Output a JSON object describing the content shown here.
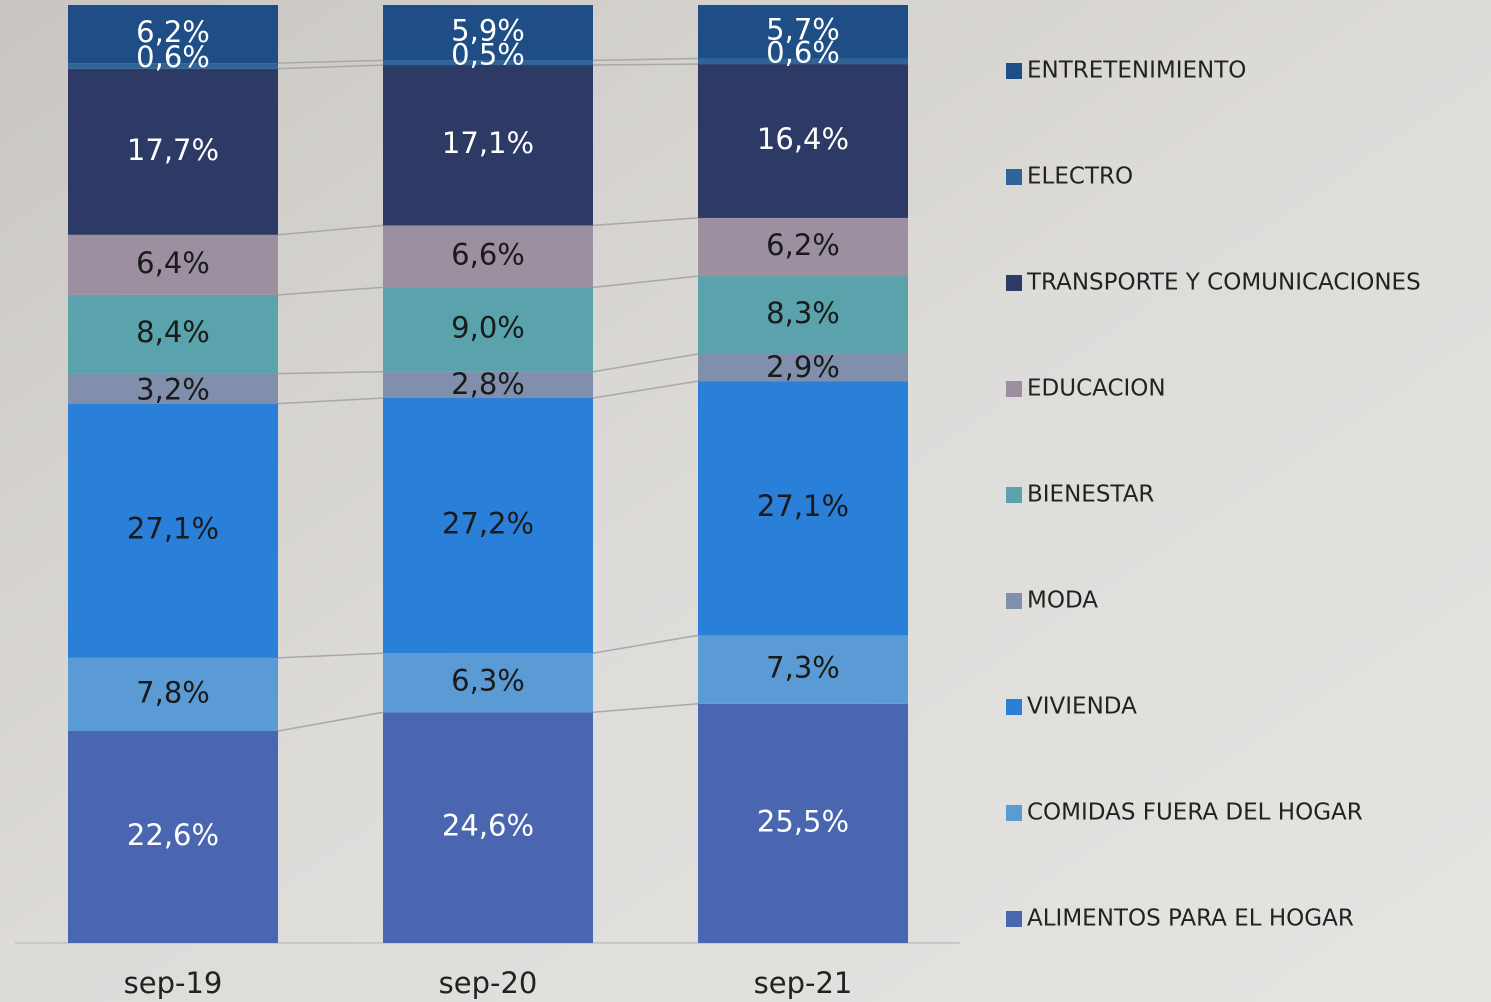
{
  "chart_data": {
    "type": "stacked_bar",
    "categories": [
      "sep-19",
      "sep-20",
      "sep-21"
    ],
    "series": [
      {
        "name": "ALIMENTOS PARA EL HOGAR",
        "color": "#4a66b0",
        "values": [
          22.6,
          24.6,
          25.5
        ],
        "value_labels": [
          "22,6%",
          "24,6%",
          "25,5%"
        ]
      },
      {
        "name": "COMIDAS FUERA DEL HOGAR",
        "color": "#5b9bd5",
        "values": [
          7.8,
          6.3,
          7.3
        ],
        "value_labels": [
          "7,8%",
          "6,3%",
          "7,3%"
        ]
      },
      {
        "name": "VIVIENDA",
        "color": "#2a7fd8",
        "values": [
          27.1,
          27.2,
          27.1
        ],
        "value_labels": [
          "27,1%",
          "27,2%",
          "27,1%"
        ]
      },
      {
        "name": "MODA",
        "color": "#7f8fac",
        "values": [
          3.2,
          2.8,
          2.9
        ],
        "value_labels": [
          "3,2%",
          "2,8%",
          "2,9%"
        ]
      },
      {
        "name": "BIENESTAR",
        "color": "#5aa3ad",
        "values": [
          8.4,
          9.0,
          8.3
        ],
        "value_labels": [
          "8,4%",
          "9,0%",
          "8,3%"
        ]
      },
      {
        "name": "EDUCACION",
        "color": "#9b8fa0",
        "values": [
          6.4,
          6.6,
          6.2
        ],
        "value_labels": [
          "6,4%",
          "6,6%",
          "6,2%"
        ]
      },
      {
        "name": "TRANSPORTE Y COMUNICACIONES",
        "color": "#2d3a66",
        "values": [
          17.7,
          17.1,
          16.4
        ],
        "value_labels": [
          "17,7%",
          "17,1%",
          "16,4%"
        ]
      },
      {
        "name": "ELECTRO",
        "color": "#2e6596",
        "values": [
          0.6,
          0.5,
          0.6
        ],
        "value_labels": [
          "0,6%",
          "0,5%",
          "0,6%"
        ]
      },
      {
        "name": "ENTRETENIMIENTO",
        "color": "#1e4e85",
        "values": [
          6.2,
          5.9,
          5.7
        ],
        "value_labels": [
          "6,2%",
          "5,9%",
          "5,7%"
        ]
      }
    ]
  }
}
